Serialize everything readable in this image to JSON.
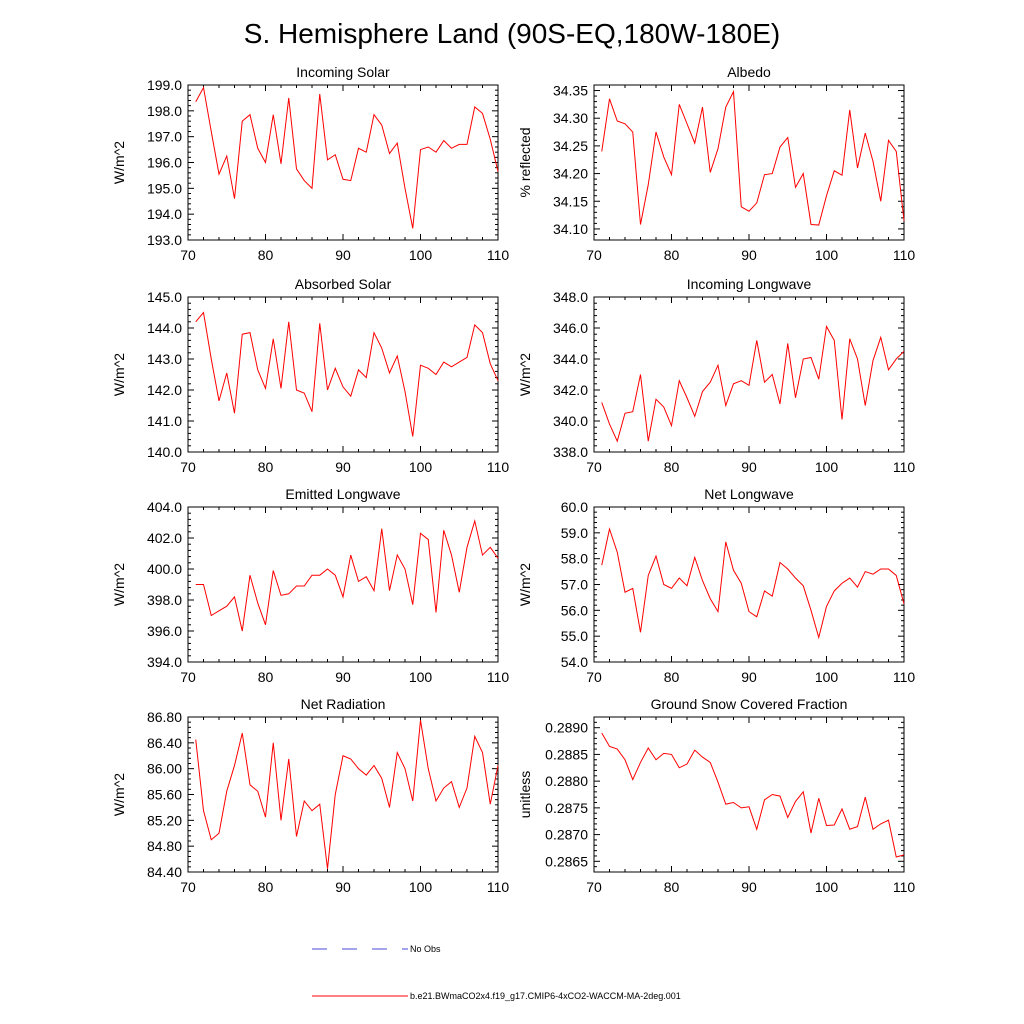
{
  "title": "S. Hemisphere Land (90S-EQ,180W-180E)",
  "x_axis": {
    "ticks": [
      70,
      80,
      90,
      100,
      110
    ],
    "xlim": [
      70,
      110
    ]
  },
  "x_values": [
    71,
    72,
    73,
    74,
    75,
    76,
    77,
    78,
    79,
    80,
    81,
    82,
    83,
    84,
    85,
    86,
    87,
    88,
    89,
    90,
    91,
    92,
    93,
    94,
    95,
    96,
    97,
    98,
    99,
    100,
    101,
    102,
    103,
    104,
    105,
    106,
    107,
    108,
    109,
    110
  ],
  "legend": {
    "obs_label": "No Obs",
    "model_label": "b.e21.BWmaCO2x4.f19_g17.CMIP6-4xCO2-WACCM-MA-2deg.001",
    "obs_color": "#4a4ad8",
    "model_color": "#ff0000"
  },
  "chart_data": [
    {
      "type": "line",
      "title": "Incoming Solar",
      "ylabel": "W/m^2",
      "ylim": [
        193.0,
        199.0
      ],
      "yticks": [
        "193.0",
        "194.0",
        "195.0",
        "196.0",
        "197.0",
        "198.0",
        "199.0"
      ],
      "series": [
        {
          "name": "b.e21.BWmaCO2x4.f19_g17.CMIP6-4xCO2-WACCM-MA-2deg.001",
          "values": [
            198.35,
            198.9,
            197.2,
            195.55,
            196.25,
            194.6,
            197.6,
            197.85,
            196.55,
            196.0,
            197.85,
            195.95,
            198.5,
            195.75,
            195.3,
            195.0,
            198.65,
            196.1,
            196.3,
            195.35,
            195.3,
            196.55,
            196.4,
            197.85,
            197.45,
            196.35,
            196.75,
            195.0,
            193.45,
            196.5,
            196.6,
            196.4,
            196.85,
            196.55,
            196.7,
            196.7,
            198.15,
            197.9,
            196.9,
            195.65
          ]
        }
      ]
    },
    {
      "type": "line",
      "title": "Albedo",
      "ylabel": "% reflected",
      "ylim": [
        34.08,
        34.36
      ],
      "yticks": [
        "34.10",
        "34.15",
        "34.20",
        "34.25",
        "34.30",
        "34.35"
      ],
      "series": [
        {
          "name": "b.e21.BWmaCO2x4.f19_g17.CMIP6-4xCO2-WACCM-MA-2deg.001",
          "values": [
            34.24,
            34.335,
            34.295,
            34.29,
            34.275,
            34.108,
            34.18,
            34.275,
            34.23,
            34.198,
            34.325,
            34.29,
            34.255,
            34.32,
            34.202,
            34.245,
            34.32,
            34.348,
            34.14,
            34.132,
            34.147,
            34.198,
            34.2,
            34.248,
            34.265,
            34.175,
            34.2,
            34.108,
            34.107,
            34.16,
            34.205,
            34.197,
            34.315,
            34.21,
            34.273,
            34.222,
            34.15,
            34.26,
            34.24,
            34.115
          ]
        }
      ]
    },
    {
      "type": "line",
      "title": "Absorbed Solar",
      "ylabel": "W/m^2",
      "ylim": [
        140.0,
        145.0
      ],
      "yticks": [
        "140.0",
        "141.0",
        "142.0",
        "143.0",
        "144.0",
        "145.0"
      ],
      "series": [
        {
          "name": "b.e21.BWmaCO2x4.f19_g17.CMIP6-4xCO2-WACCM-MA-2deg.001",
          "values": [
            144.2,
            144.5,
            143.0,
            141.65,
            142.55,
            141.25,
            143.8,
            143.85,
            142.65,
            142.05,
            143.65,
            142.05,
            144.2,
            142.0,
            141.9,
            141.3,
            144.15,
            142.0,
            142.7,
            142.1,
            141.8,
            142.65,
            142.4,
            143.85,
            143.35,
            142.55,
            143.1,
            141.95,
            140.5,
            142.8,
            142.7,
            142.5,
            142.9,
            142.75,
            142.9,
            143.05,
            144.1,
            143.85,
            142.85,
            142.3
          ]
        }
      ]
    },
    {
      "type": "line",
      "title": "Incoming Longwave",
      "ylabel": "W/m^2",
      "ylim": [
        338.0,
        348.0
      ],
      "yticks": [
        "338.0",
        "340.0",
        "342.0",
        "344.0",
        "346.0",
        "348.0"
      ],
      "series": [
        {
          "name": "b.e21.BWmaCO2x4.f19_g17.CMIP6-4xCO2-WACCM-MA-2deg.001",
          "values": [
            341.2,
            339.8,
            338.7,
            340.5,
            340.6,
            343.0,
            338.7,
            341.4,
            340.9,
            339.7,
            342.6,
            341.5,
            340.3,
            341.9,
            342.5,
            343.6,
            341.0,
            342.4,
            342.6,
            342.3,
            345.2,
            342.5,
            343.0,
            341.1,
            345.0,
            341.5,
            344.0,
            344.1,
            342.7,
            346.1,
            345.2,
            340.1,
            345.3,
            344.0,
            341.0,
            343.9,
            345.4,
            343.3,
            344.0,
            344.5
          ]
        }
      ]
    },
    {
      "type": "line",
      "title": "Emitted Longwave",
      "ylabel": "W/m^2",
      "ylim": [
        394.0,
        404.0
      ],
      "yticks": [
        "394.0",
        "396.0",
        "398.0",
        "400.0",
        "402.0",
        "404.0"
      ],
      "series": [
        {
          "name": "b.e21.BWmaCO2x4.f19_g17.CMIP6-4xCO2-WACCM-MA-2deg.001",
          "values": [
            399.0,
            399.0,
            397.0,
            397.3,
            397.6,
            398.2,
            396.0,
            399.6,
            397.8,
            396.4,
            399.9,
            398.3,
            398.4,
            398.9,
            398.9,
            399.6,
            399.6,
            400.0,
            399.6,
            398.2,
            400.9,
            399.2,
            399.5,
            398.6,
            402.6,
            398.6,
            400.9,
            400.0,
            397.7,
            402.3,
            401.9,
            397.2,
            402.5,
            400.9,
            398.5,
            401.4,
            403.1,
            400.9,
            401.4,
            400.7
          ]
        }
      ]
    },
    {
      "type": "line",
      "title": "Net Longwave",
      "ylabel": "W/m^2",
      "ylim": [
        54.0,
        60.0
      ],
      "yticks": [
        "54.0",
        "55.0",
        "56.0",
        "57.0",
        "58.0",
        "59.0",
        "60.0"
      ],
      "series": [
        {
          "name": "b.e21.BWmaCO2x4.f19_g17.CMIP6-4xCO2-WACCM-MA-2deg.001",
          "values": [
            57.75,
            59.15,
            58.25,
            56.7,
            56.85,
            55.15,
            57.35,
            58.1,
            57.0,
            56.85,
            57.25,
            56.95,
            58.05,
            57.15,
            56.45,
            55.95,
            58.65,
            57.55,
            57.05,
            55.95,
            55.75,
            56.75,
            56.55,
            57.85,
            57.6,
            57.25,
            56.95,
            56.0,
            54.95,
            56.15,
            56.75,
            57.05,
            57.25,
            56.9,
            57.5,
            57.4,
            57.6,
            57.6,
            57.35,
            56.25
          ]
        }
      ]
    },
    {
      "type": "line",
      "title": "Net Radiation",
      "ylabel": "W/m^2",
      "ylim": [
        84.4,
        86.8
      ],
      "yticks": [
        "84.40",
        "84.80",
        "85.20",
        "85.60",
        "86.00",
        "86.40",
        "86.80"
      ],
      "series": [
        {
          "name": "b.e21.BWmaCO2x4.f19_g17.CMIP6-4xCO2-WACCM-MA-2deg.001",
          "values": [
            86.45,
            85.35,
            84.9,
            85.0,
            85.65,
            86.05,
            86.55,
            85.75,
            85.65,
            85.25,
            86.4,
            85.2,
            86.15,
            84.95,
            85.5,
            85.35,
            85.45,
            84.45,
            85.6,
            86.2,
            86.15,
            86.0,
            85.9,
            86.05,
            85.85,
            85.4,
            86.25,
            86.0,
            85.5,
            86.75,
            86.0,
            85.5,
            85.7,
            85.8,
            85.4,
            85.7,
            86.5,
            86.25,
            85.45,
            86.05
          ]
        }
      ]
    },
    {
      "type": "line",
      "title": "Ground Snow Covered Fraction",
      "ylabel": "unitless",
      "ylim": [
        0.2863,
        0.2892
      ],
      "yticks": [
        "0.2865",
        "0.2870",
        "0.2875",
        "0.2880",
        "0.2885",
        "0.2890"
      ],
      "series": [
        {
          "name": "b.e21.BWmaCO2x4.f19_g17.CMIP6-4xCO2-WACCM-MA-2deg.001",
          "values": [
            0.2889,
            0.28865,
            0.2886,
            0.2884,
            0.28803,
            0.28835,
            0.28862,
            0.2884,
            0.28852,
            0.2885,
            0.28825,
            0.28832,
            0.28858,
            0.28845,
            0.28835,
            0.28798,
            0.28757,
            0.2876,
            0.2875,
            0.28752,
            0.2871,
            0.28765,
            0.28775,
            0.28772,
            0.28732,
            0.28762,
            0.2878,
            0.28703,
            0.28768,
            0.28717,
            0.28718,
            0.28748,
            0.2871,
            0.28715,
            0.2877,
            0.2871,
            0.2872,
            0.28727,
            0.28658,
            0.28662
          ]
        }
      ]
    }
  ]
}
